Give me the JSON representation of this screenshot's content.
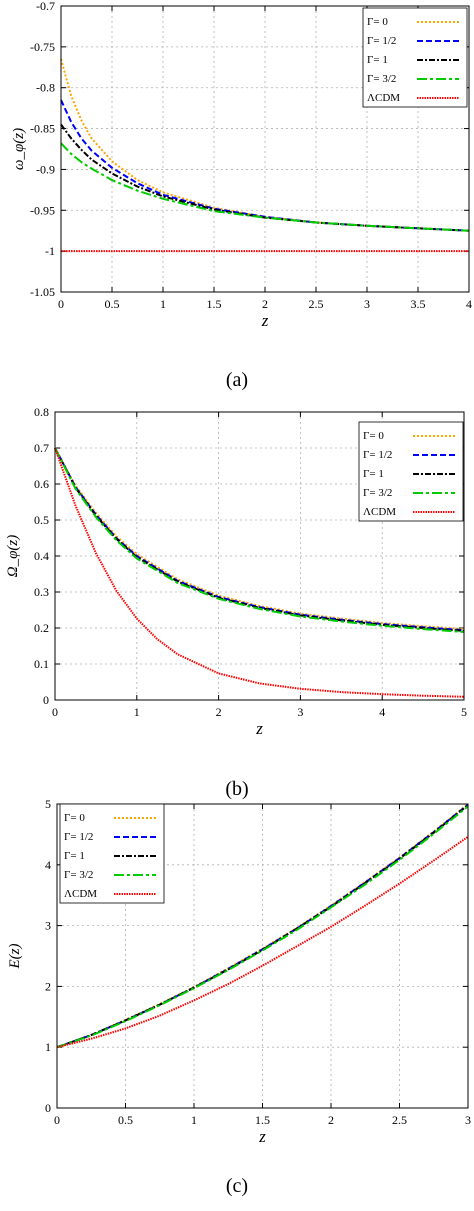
{
  "chart_data": [
    {
      "type": "line",
      "caption": "(a)",
      "xlabel": "z",
      "ylabel": "ω_φ(z)",
      "xlim": [
        0,
        4
      ],
      "ylim": [
        -1.05,
        -0.7
      ],
      "xticks": [
        0,
        0.5,
        1,
        1.5,
        2,
        2.5,
        3,
        3.5,
        4
      ],
      "xtick_labels": [
        "0",
        "0.5",
        "1",
        "1.5",
        "2",
        "2.5",
        "3",
        "3.5",
        "4"
      ],
      "yticks": [
        -1.05,
        -1,
        -0.95,
        -0.9,
        -0.85,
        -0.8,
        -0.75,
        -0.7
      ],
      "ytick_labels": [
        "-1.05",
        "-1",
        "-0.95",
        "-0.9",
        "-0.85",
        "-0.8",
        "-0.75",
        "-0.7"
      ],
      "grid": true,
      "legend_position": "top-right",
      "series": [
        {
          "name": "Γ= 0",
          "color": "#FFA500",
          "dash": "dotted",
          "x": [
            0,
            0.1,
            0.2,
            0.3,
            0.5,
            0.75,
            1,
            1.5,
            2,
            2.5,
            3,
            3.5,
            4
          ],
          "y": [
            -0.765,
            -0.81,
            -0.84,
            -0.862,
            -0.89,
            -0.913,
            -0.928,
            -0.947,
            -0.958,
            -0.965,
            -0.969,
            -0.972,
            -0.975
          ]
        },
        {
          "name": "Γ= 1/2",
          "color": "#0000FF",
          "dash": "dashed",
          "x": [
            0,
            0.1,
            0.2,
            0.3,
            0.5,
            0.75,
            1,
            1.5,
            2,
            2.5,
            3,
            3.5,
            4
          ],
          "y": [
            -0.815,
            -0.842,
            -0.862,
            -0.877,
            -0.898,
            -0.917,
            -0.931,
            -0.948,
            -0.958,
            -0.965,
            -0.969,
            -0.972,
            -0.975
          ]
        },
        {
          "name": "Γ= 1",
          "color": "#000000",
          "dash": "dashdot",
          "x": [
            0,
            0.1,
            0.2,
            0.3,
            0.5,
            0.75,
            1,
            1.5,
            2,
            2.5,
            3,
            3.5,
            4
          ],
          "y": [
            -0.845,
            -0.862,
            -0.876,
            -0.888,
            -0.905,
            -0.921,
            -0.933,
            -0.949,
            -0.959,
            -0.965,
            -0.969,
            -0.972,
            -0.975
          ]
        },
        {
          "name": "Γ= 3/2",
          "color": "#00CC00",
          "dash": "longdash",
          "x": [
            0,
            0.1,
            0.2,
            0.3,
            0.5,
            0.75,
            1,
            1.5,
            2,
            2.5,
            3,
            3.5,
            4
          ],
          "y": [
            -0.868,
            -0.881,
            -0.891,
            -0.899,
            -0.913,
            -0.926,
            -0.936,
            -0.951,
            -0.959,
            -0.965,
            -0.969,
            -0.972,
            -0.975
          ]
        },
        {
          "name": "ΛCDM",
          "color": "#FF0000",
          "dash": "dense",
          "x": [
            0,
            4
          ],
          "y": [
            -1,
            -1
          ]
        }
      ]
    },
    {
      "type": "line",
      "caption": "(b)",
      "xlabel": "z",
      "ylabel": "Ω_φ(z)",
      "xlim": [
        0,
        5
      ],
      "ylim": [
        0,
        0.8
      ],
      "xticks": [
        0,
        1,
        2,
        3,
        4,
        5
      ],
      "xtick_labels": [
        "0",
        "1",
        "2",
        "3",
        "4",
        "5"
      ],
      "yticks": [
        0,
        0.1,
        0.2,
        0.3,
        0.4,
        0.5,
        0.6,
        0.7,
        0.8
      ],
      "ytick_labels": [
        "0",
        "0.1",
        "0.2",
        "0.3",
        "0.4",
        "0.5",
        "0.6",
        "0.7",
        "0.8"
      ],
      "grid": true,
      "legend_position": "top-right",
      "series": [
        {
          "name": "Γ= 0",
          "color": "#FFA500",
          "dash": "dotted",
          "x": [
            0,
            0.25,
            0.5,
            0.75,
            1,
            1.5,
            2,
            2.5,
            3,
            3.5,
            4,
            4.5,
            5
          ],
          "y": [
            0.7,
            0.595,
            0.52,
            0.455,
            0.405,
            0.335,
            0.29,
            0.261,
            0.24,
            0.226,
            0.214,
            0.205,
            0.197
          ]
        },
        {
          "name": "Γ= 1/2",
          "color": "#0000FF",
          "dash": "dashed",
          "x": [
            0,
            0.25,
            0.5,
            0.75,
            1,
            1.5,
            2,
            2.5,
            3,
            3.5,
            4,
            4.5,
            5
          ],
          "y": [
            0.7,
            0.592,
            0.515,
            0.45,
            0.4,
            0.331,
            0.286,
            0.258,
            0.237,
            0.223,
            0.211,
            0.202,
            0.194
          ]
        },
        {
          "name": "Γ= 1",
          "color": "#000000",
          "dash": "dashdot",
          "x": [
            0,
            0.25,
            0.5,
            0.75,
            1,
            1.5,
            2,
            2.5,
            3,
            3.5,
            4,
            4.5,
            5
          ],
          "y": [
            0.7,
            0.59,
            0.512,
            0.448,
            0.397,
            0.329,
            0.284,
            0.256,
            0.235,
            0.221,
            0.209,
            0.2,
            0.192
          ]
        },
        {
          "name": "Γ= 3/2",
          "color": "#00CC00",
          "dash": "longdash",
          "x": [
            0,
            0.25,
            0.5,
            0.75,
            1,
            1.5,
            2,
            2.5,
            3,
            3.5,
            4,
            4.5,
            5
          ],
          "y": [
            0.7,
            0.587,
            0.508,
            0.444,
            0.393,
            0.325,
            0.281,
            0.253,
            0.232,
            0.218,
            0.206,
            0.197,
            0.189
          ]
        },
        {
          "name": "ΛCDM",
          "color": "#FF0000",
          "dash": "dense",
          "x": [
            0,
            0.25,
            0.5,
            0.75,
            1,
            1.25,
            1.5,
            2,
            2.5,
            3,
            3.5,
            4,
            4.5,
            5
          ],
          "y": [
            0.7,
            0.54,
            0.408,
            0.304,
            0.226,
            0.169,
            0.127,
            0.074,
            0.046,
            0.031,
            0.022,
            0.016,
            0.012,
            0.009
          ]
        }
      ]
    },
    {
      "type": "line",
      "caption": "(c)",
      "xlabel": "z",
      "ylabel": "E(z)",
      "xlim": [
        0,
        3
      ],
      "ylim": [
        0,
        5
      ],
      "xticks": [
        0,
        0.5,
        1,
        1.5,
        2,
        2.5,
        3
      ],
      "xtick_labels": [
        "0",
        "0.5",
        "1",
        "1.5",
        "2",
        "2.5",
        "3"
      ],
      "yticks": [
        0,
        1,
        2,
        3,
        4,
        5
      ],
      "ytick_labels": [
        "0",
        "1",
        "2",
        "3",
        "4",
        "5"
      ],
      "grid": true,
      "legend_position": "top-left",
      "series": [
        {
          "name": "Γ= 0",
          "color": "#FFA500",
          "dash": "dotted",
          "x": [
            0,
            0.25,
            0.5,
            0.75,
            1,
            1.25,
            1.5,
            1.75,
            2,
            2.25,
            2.5,
            2.75,
            3
          ],
          "y": [
            1,
            1.2,
            1.45,
            1.71,
            1.99,
            2.3,
            2.62,
            2.96,
            3.33,
            3.72,
            4.12,
            4.55,
            5.0
          ]
        },
        {
          "name": "Γ= 1/2",
          "color": "#0000FF",
          "dash": "dashed",
          "x": [
            0,
            0.25,
            0.5,
            0.75,
            1,
            1.25,
            1.5,
            1.75,
            2,
            2.25,
            2.5,
            2.75,
            3
          ],
          "y": [
            1,
            1.2,
            1.44,
            1.7,
            1.98,
            2.29,
            2.61,
            2.95,
            3.32,
            3.71,
            4.11,
            4.54,
            4.99
          ]
        },
        {
          "name": "Γ= 1",
          "color": "#000000",
          "dash": "dashdot",
          "x": [
            0,
            0.25,
            0.5,
            0.75,
            1,
            1.25,
            1.5,
            1.75,
            2,
            2.25,
            2.5,
            2.75,
            3
          ],
          "y": [
            1,
            1.2,
            1.44,
            1.7,
            1.98,
            2.28,
            2.6,
            2.95,
            3.31,
            3.7,
            4.1,
            4.53,
            4.98
          ]
        },
        {
          "name": "Γ= 3/2",
          "color": "#00CC00",
          "dash": "longdash",
          "x": [
            0,
            0.25,
            0.5,
            0.75,
            1,
            1.25,
            1.5,
            1.75,
            2,
            2.25,
            2.5,
            2.75,
            3
          ],
          "y": [
            1,
            1.19,
            1.43,
            1.69,
            1.97,
            2.27,
            2.59,
            2.93,
            3.3,
            3.68,
            4.08,
            4.51,
            4.96
          ]
        },
        {
          "name": "ΛCDM",
          "color": "#FF0000",
          "dash": "dense",
          "x": [
            0,
            0.25,
            0.5,
            0.75,
            1,
            1.25,
            1.5,
            1.75,
            2,
            2.25,
            2.5,
            2.75,
            3
          ],
          "y": [
            1,
            1.14,
            1.31,
            1.52,
            1.77,
            2.04,
            2.34,
            2.66,
            2.98,
            3.33,
            3.69,
            4.07,
            4.46
          ]
        }
      ]
    }
  ]
}
